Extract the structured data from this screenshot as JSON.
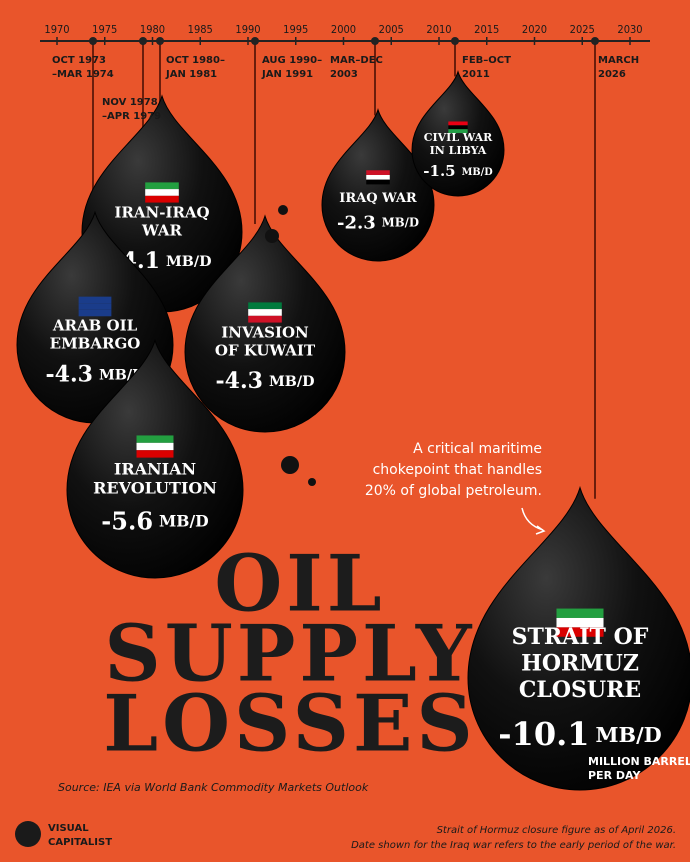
{
  "timeline": {
    "years": [
      "1970",
      "1975",
      "1980",
      "1985",
      "1990",
      "1995",
      "2000",
      "2005",
      "2010",
      "2015",
      "2020",
      "2025",
      "2030"
    ]
  },
  "events": [
    {
      "date": [
        "OCT 1973",
        "–MAR 1974"
      ],
      "name": [
        "ARAB OIL",
        "EMBARGO"
      ],
      "value": "-4.3",
      "unit": "MB/D"
    },
    {
      "date": [
        "NOV 1978",
        "–APR 1979"
      ],
      "name": [
        "IRANIAN",
        "REVOLUTION"
      ],
      "value": "-5.6",
      "unit": "MB/D"
    },
    {
      "date": [
        "OCT 1980–",
        "JAN 1981"
      ],
      "name": [
        "IRAN-IRAQ",
        "WAR"
      ],
      "value": "-4.1",
      "unit": "MB/D"
    },
    {
      "date": [
        "AUG 1990–",
        "JAN 1991"
      ],
      "name": [
        "INVASION",
        "OF KUWAIT"
      ],
      "value": "-4.3",
      "unit": "MB/D"
    },
    {
      "date": [
        "MAR–DEC",
        "2003"
      ],
      "name": [
        "IRAQ WAR"
      ],
      "value": "-2.3",
      "unit": "MB/D"
    },
    {
      "date": [
        "FEB–OCT",
        "2011"
      ],
      "name": [
        "CIVIL WAR",
        "IN LIBYA"
      ],
      "value": "-1.5",
      "unit": "MB/D"
    },
    {
      "date": [
        "MARCH",
        "2026"
      ],
      "name": [
        "STRAIT OF",
        "HORMUZ",
        "CLOSURE"
      ],
      "value": "-10.1",
      "unit": "MB/D"
    }
  ],
  "title": [
    "OIL",
    "SUPPLY",
    "LOSSES"
  ],
  "annotation": [
    "A critical maritime",
    "chokepoint that handles",
    "20% of global petroleum."
  ],
  "unit_note": [
    "MILLION BARRELS",
    "PER DAY"
  ],
  "source": "Source: IEA via World Bank Commodity Markets Outlook",
  "logo": [
    "VISUAL",
    "CAPITALIST"
  ],
  "footnotes": [
    "Strait of Hormuz closure figure as of April 2026.",
    "Date shown for the Iraq war refers to the early period of the war."
  ]
}
